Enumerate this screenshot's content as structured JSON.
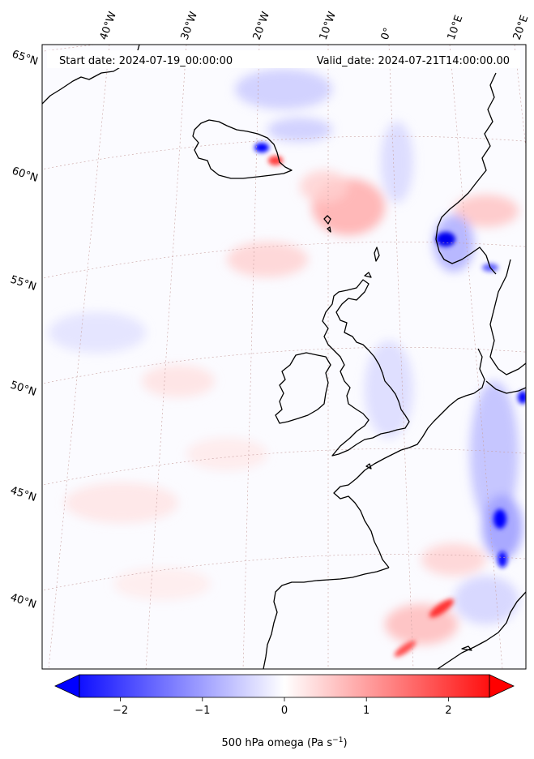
{
  "header": {
    "start_date": "Start date: 2024-07-19_00:00:00",
    "valid_date": "Valid_date: 2024-07-21T14:00:00.00"
  },
  "map": {
    "projection": "lambert-conformal",
    "longitude_labels": [
      "40°W",
      "30°W",
      "20°W",
      "10°W",
      "0°",
      "10°E",
      "20°E"
    ],
    "latitude_labels": [
      "65°N",
      "60°N",
      "55°N",
      "50°N",
      "45°N",
      "40°N"
    ],
    "coastline_color": "#000000",
    "gridline_color": "#c8a0a0"
  },
  "colorbar": {
    "tick_labels": [
      "−2",
      "−1",
      "0",
      "1",
      "2"
    ],
    "tick_values": [
      -2,
      -1,
      0,
      1,
      2
    ],
    "range": [
      -2.5,
      2.5
    ],
    "extend": "both",
    "label_main": "500 hPa omega (Pa s",
    "label_sup": "−1",
    "label_close": ")",
    "low_color": "#0000ff",
    "mid_color": "#ffffff",
    "high_color": "#ff0000"
  }
}
